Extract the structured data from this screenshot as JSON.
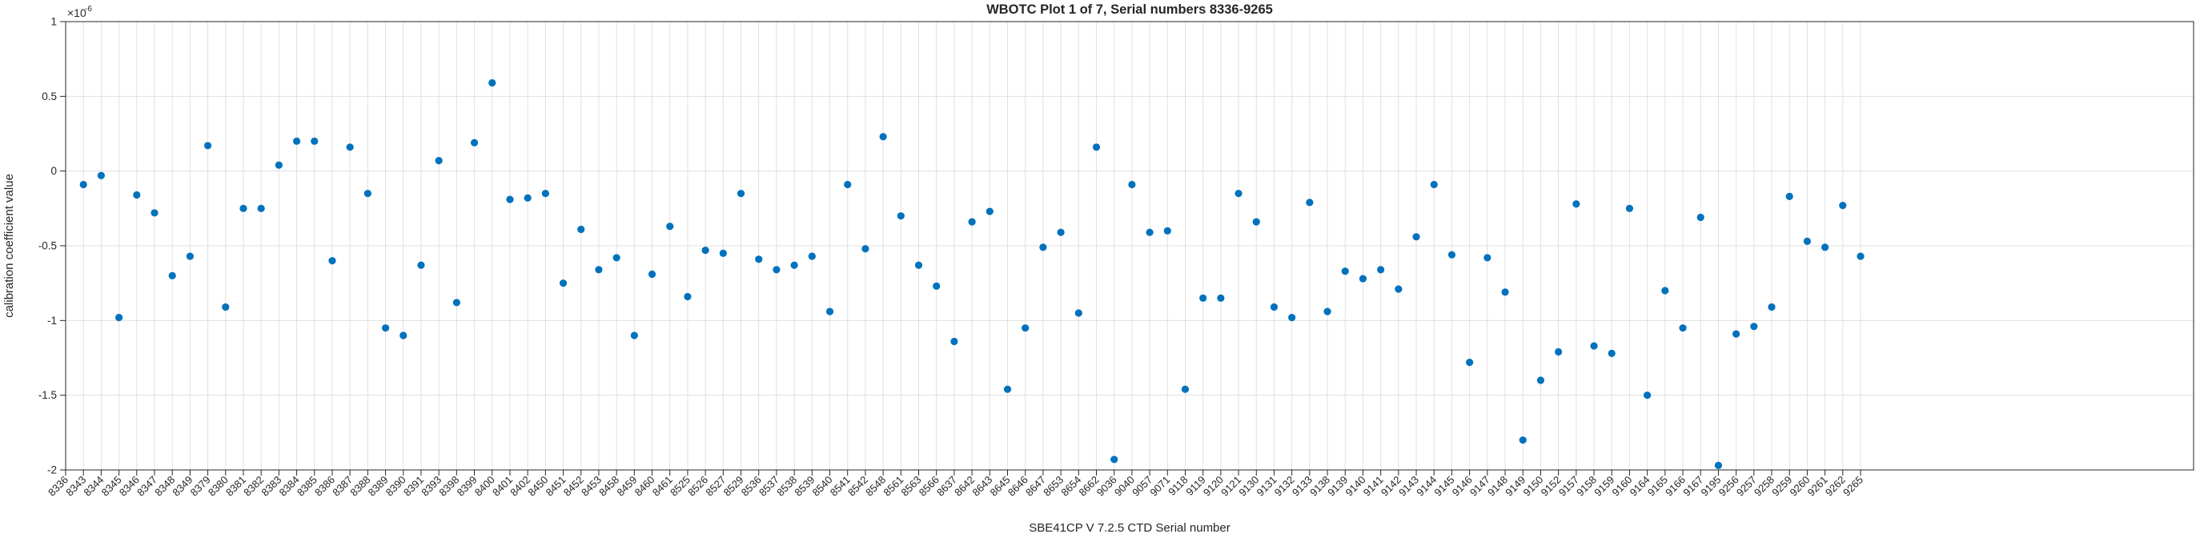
{
  "figure": {
    "background": "#ffffff"
  },
  "chart_data": {
    "type": "scatter",
    "title": "WBOTC Plot 1 of 7, Serial numbers 8336-9265",
    "xlabel": "SBE41CP V 7.2.5 CTD Serial number",
    "ylabel": "calibration coefficient value",
    "y_exponent_base": "×10",
    "y_exponent_power": "-6",
    "ylim": [
      -2,
      1
    ],
    "yticks": [
      1,
      0.5,
      0,
      -0.5,
      -1,
      -1.5,
      -2
    ],
    "ytick_labels": [
      "1",
      "0.5",
      "0",
      "-0.5",
      "-1",
      "-1.5",
      "-2"
    ],
    "grid": true,
    "legend": "none",
    "marker_color": "#0072BD",
    "axis_color": "#262626",
    "grid_color": "#e0e0e0",
    "categories": [
      "8336",
      "8343",
      "8344",
      "8345",
      "8346",
      "8347",
      "8348",
      "8349",
      "8379",
      "8380",
      "8381",
      "8382",
      "8383",
      "8384",
      "8385",
      "8386",
      "8387",
      "8388",
      "8389",
      "8390",
      "8391",
      "8393",
      "8398",
      "8399",
      "8400",
      "8401",
      "8402",
      "8450",
      "8451",
      "8452",
      "8453",
      "8458",
      "8459",
      "8460",
      "8461",
      "8525",
      "8526",
      "8527",
      "8529",
      "8536",
      "8537",
      "8538",
      "8539",
      "8540",
      "8541",
      "8542",
      "8548",
      "8561",
      "8563",
      "8566",
      "8637",
      "8642",
      "8643",
      "8645",
      "8646",
      "8647",
      "8653",
      "8654",
      "8662",
      "9036",
      "9040",
      "9057",
      "9071",
      "9118",
      "9119",
      "9120",
      "9121",
      "9130",
      "9131",
      "9132",
      "9133",
      "9138",
      "9139",
      "9140",
      "9141",
      "9142",
      "9143",
      "9144",
      "9145",
      "9146",
      "9147",
      "9148",
      "9149",
      "9150",
      "9152",
      "9157",
      "9158",
      "9159",
      "9160",
      "9164",
      "9165",
      "9166",
      "9167",
      "9195",
      "9256",
      "9257",
      "9258",
      "9259",
      "9260",
      "9261",
      "9262",
      "9265"
    ],
    "values": [
      null,
      -0.09,
      -0.03,
      -0.98,
      -0.16,
      -0.28,
      -0.7,
      -0.57,
      0.17,
      -0.91,
      -0.25,
      -0.25,
      0.04,
      0.2,
      0.2,
      -0.6,
      0.16,
      -0.15,
      -1.05,
      -1.1,
      -0.63,
      0.07,
      -0.88,
      0.19,
      0.59,
      -0.19,
      -0.18,
      -0.15,
      -0.75,
      -0.39,
      -0.66,
      -0.58,
      -1.1,
      -0.69,
      -0.37,
      -0.84,
      -0.53,
      -0.55,
      -0.15,
      -0.59,
      -0.66,
      -0.63,
      -0.57,
      -0.94,
      -0.09,
      -0.52,
      0.23,
      -0.3,
      -0.63,
      -0.77,
      -1.14,
      -0.34,
      -0.27,
      -1.46,
      -1.05,
      -0.51,
      -0.41,
      -0.95,
      0.16,
      -1.93,
      -0.09,
      -0.41,
      -0.4,
      -1.46,
      -0.85,
      -0.85,
      -0.15,
      -0.34,
      -0.91,
      -0.98,
      -0.21,
      -0.94,
      -0.67,
      -0.72,
      -0.66,
      -0.79,
      -0.44,
      -0.09,
      -0.56,
      -1.28,
      -0.58,
      -0.81,
      -1.8,
      -1.4,
      -1.21,
      -0.22,
      -1.17,
      -1.22,
      -0.25,
      -1.5,
      -0.8,
      -1.05,
      -0.31,
      -1.97,
      -1.09,
      -1.04,
      -0.91,
      -0.17,
      -0.47,
      -0.51,
      -0.23,
      -0.57
    ],
    "value_units": "1e-6"
  }
}
